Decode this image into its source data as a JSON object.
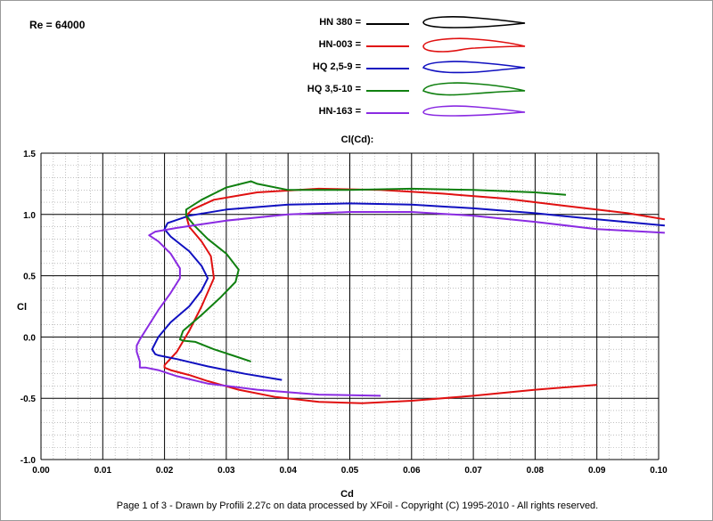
{
  "header": {
    "reynolds": "Re = 64000"
  },
  "footer": {
    "text": "Page 1 of 3   -   Drawn by Profili 2.27c on data processed by  XFoil - Copyright (C) 1995-2010 - All rights reserved."
  },
  "chart_data": {
    "type": "line",
    "title": "Cl(Cd):",
    "xlabel": "Cd",
    "ylabel": "Cl",
    "xlim": [
      0.0,
      0.1
    ],
    "ylim": [
      -1.0,
      1.5
    ],
    "xticks": [
      "0.00",
      "0.01",
      "0.02",
      "0.03",
      "0.04",
      "0.05",
      "0.06",
      "0.07",
      "0.08",
      "0.09",
      "0.10"
    ],
    "yticks": [
      "1.5",
      "1.0",
      "0.5",
      "0.0",
      "-0.5",
      "-1.0"
    ],
    "grid": true,
    "legend_position": "top",
    "series": [
      {
        "name": "HN 380 =",
        "color": "#000000",
        "x": [],
        "y": []
      },
      {
        "name": "HN-003 =",
        "color": "#e01010",
        "x": [
          0.09,
          0.08,
          0.07,
          0.06,
          0.052,
          0.045,
          0.038,
          0.032,
          0.027,
          0.024,
          0.021,
          0.02,
          0.02,
          0.022,
          0.024,
          0.026,
          0.028,
          0.0275,
          0.026,
          0.024,
          0.0235,
          0.0245,
          0.028,
          0.035,
          0.045,
          0.055,
          0.065,
          0.075,
          0.085,
          0.095,
          0.101
        ],
        "y": [
          -0.39,
          -0.43,
          -0.48,
          -0.52,
          -0.54,
          -0.53,
          -0.49,
          -0.43,
          -0.36,
          -0.31,
          -0.27,
          -0.25,
          -0.23,
          -0.12,
          0.05,
          0.25,
          0.48,
          0.66,
          0.78,
          0.9,
          0.99,
          1.04,
          1.12,
          1.18,
          1.21,
          1.2,
          1.17,
          1.13,
          1.07,
          1.01,
          0.96
        ]
      },
      {
        "name": "HQ 2,5-9 =",
        "color": "#1010c0",
        "x": [
          0.039,
          0.033,
          0.027,
          0.022,
          0.019,
          0.0185,
          0.018,
          0.019,
          0.021,
          0.024,
          0.026,
          0.027,
          0.026,
          0.024,
          0.021,
          0.02,
          0.0205,
          0.024,
          0.03,
          0.04,
          0.05,
          0.06,
          0.07,
          0.08,
          0.09,
          0.101
        ],
        "y": [
          -0.35,
          -0.3,
          -0.24,
          -0.18,
          -0.15,
          -0.14,
          -0.1,
          0.0,
          0.12,
          0.25,
          0.38,
          0.48,
          0.58,
          0.7,
          0.82,
          0.88,
          0.93,
          0.99,
          1.04,
          1.08,
          1.09,
          1.08,
          1.05,
          1.01,
          0.96,
          0.91
        ]
      },
      {
        "name": "HQ 3,5-10 =",
        "color": "#108010",
        "x": [
          0.034,
          0.031,
          0.028,
          0.025,
          0.023,
          0.0225,
          0.023,
          0.026,
          0.029,
          0.0315,
          0.032,
          0.03,
          0.027,
          0.025,
          0.0235,
          0.0235,
          0.026,
          0.03,
          0.034,
          0.035,
          0.04,
          0.05,
          0.06,
          0.07,
          0.08,
          0.085
        ],
        "y": [
          -0.2,
          -0.15,
          -0.1,
          -0.04,
          -0.03,
          -0.02,
          0.05,
          0.18,
          0.32,
          0.45,
          0.55,
          0.68,
          0.8,
          0.9,
          0.99,
          1.04,
          1.12,
          1.22,
          1.27,
          1.25,
          1.2,
          1.2,
          1.21,
          1.2,
          1.18,
          1.16
        ]
      },
      {
        "name": "HN-163 =",
        "color": "#8a2be2",
        "x": [
          0.055,
          0.045,
          0.035,
          0.027,
          0.022,
          0.019,
          0.017,
          0.016,
          0.016,
          0.0155,
          0.0155,
          0.016,
          0.0175,
          0.019,
          0.021,
          0.0225,
          0.0225,
          0.021,
          0.019,
          0.0175,
          0.0185,
          0.022,
          0.03,
          0.04,
          0.05,
          0.06,
          0.07,
          0.08,
          0.09,
          0.101
        ],
        "y": [
          -0.48,
          -0.47,
          -0.43,
          -0.38,
          -0.32,
          -0.27,
          -0.25,
          -0.25,
          -0.2,
          -0.12,
          -0.07,
          -0.02,
          0.1,
          0.22,
          0.36,
          0.48,
          0.56,
          0.68,
          0.78,
          0.83,
          0.86,
          0.89,
          0.95,
          1.0,
          1.02,
          1.02,
          0.99,
          0.94,
          0.88,
          0.85
        ]
      }
    ]
  }
}
